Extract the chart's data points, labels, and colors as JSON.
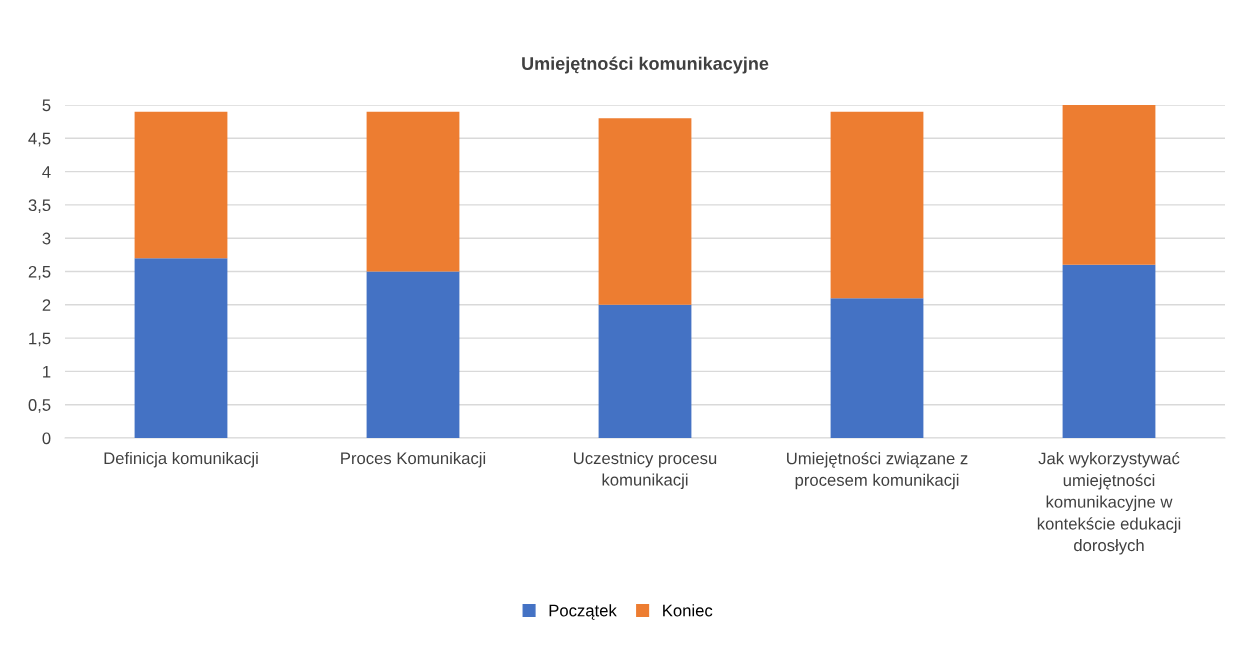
{
  "chart_data": {
    "type": "bar",
    "title": "Umiejętności komunikacyjne",
    "stacked": true,
    "categories": [
      "Definicja komunikacji",
      "Proces Komunikacji",
      "Uczestnicy procesu\nkomunikacji",
      "Umiejętności związane z\nprocesem komunikacji",
      "Jak wykorzystywać\numiejętności\nkomunikacyjne w\nkontekście edukacji\ndorosłych"
    ],
    "series": [
      {
        "name": "Początek",
        "color": "#4472c4",
        "values": [
          2.7,
          2.5,
          2.0,
          2.1,
          2.6
        ]
      },
      {
        "name": "Koniec",
        "color": "#ed7d31",
        "values": [
          2.2,
          2.4,
          2.8,
          2.8,
          2.4
        ]
      }
    ],
    "ylim": [
      0,
      5
    ],
    "yticks": [
      0,
      {
        "value": 0.5,
        "label": "0,5"
      },
      1,
      {
        "value": 1.5,
        "label": "1,5"
      },
      2,
      {
        "value": 2.5,
        "label": "2,5"
      },
      3,
      {
        "value": 3.5,
        "label": "3,5"
      },
      4,
      {
        "value": 4.5,
        "label": "4,5"
      },
      5
    ],
    "grid": "y",
    "legend": "bottom"
  }
}
